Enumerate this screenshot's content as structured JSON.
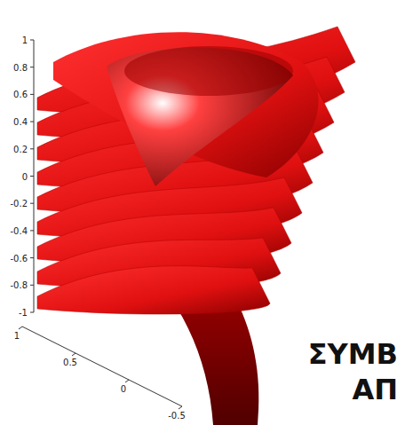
{
  "chart_data": {
    "type": "surface",
    "color": "#e01010",
    "ylim": [
      -1,
      1
    ],
    "yticks": [
      -1,
      -0.8,
      -0.6,
      -0.4,
      -0.2,
      0,
      0.2,
      0.4,
      0.6,
      0.8,
      1
    ],
    "xlim": [
      -0.5,
      1
    ],
    "xticks": [
      -0.5,
      0,
      0.5,
      1
    ],
    "annotations": [
      "ΣΥΜΒ",
      "ΑΠ"
    ]
  }
}
